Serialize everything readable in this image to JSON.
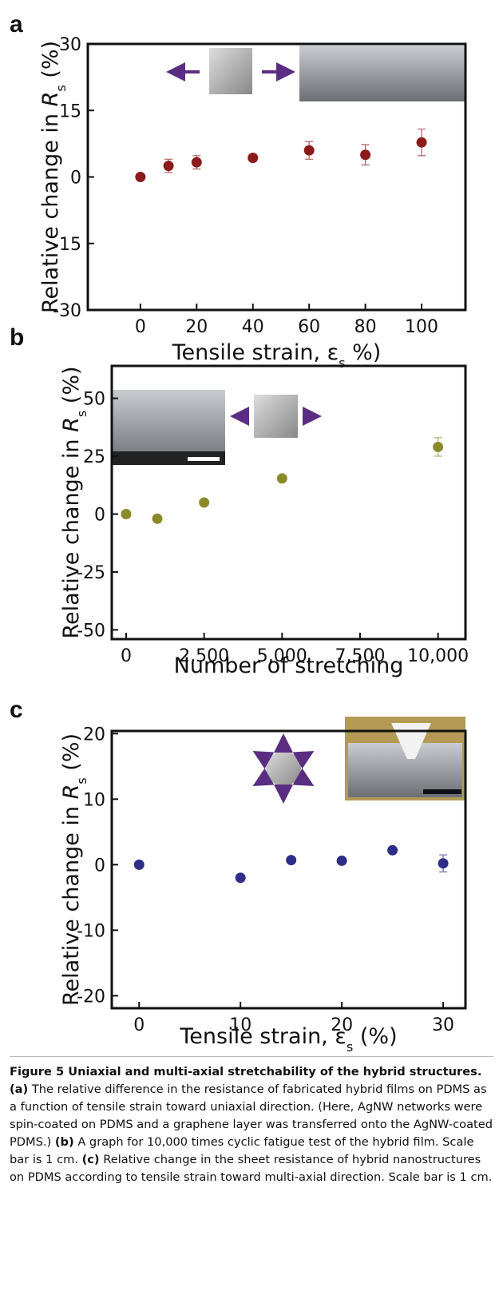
{
  "chart_data": [
    {
      "type": "scatter",
      "panel_label": "a",
      "ylabel": [
        "Relative change in ",
        "R",
        "s",
        " (%)"
      ],
      "xlabel": [
        "Tensile strain, ε",
        "s",
        " %)"
      ],
      "x": [
        0,
        10,
        20,
        40,
        60,
        80,
        100
      ],
      "values": [
        0,
        2.5,
        3.3,
        4.3,
        6,
        5,
        7.8
      ],
      "errors": [
        null,
        1.5,
        1.5,
        0.7,
        2,
        2.3,
        3
      ],
      "color": "#8b1a1a",
      "xlim": [
        -18.7,
        115.6
      ],
      "xticks": [
        0,
        20,
        40,
        60,
        80,
        100
      ],
      "ylim": [
        -30,
        30
      ],
      "yticks": [
        -30,
        -15,
        0,
        15,
        30
      ]
    },
    {
      "type": "scatter",
      "panel_label": "b",
      "ylabel": [
        "Relative change in ",
        "R",
        "s",
        " (%)"
      ],
      "xlabel": [
        "Number of stretching"
      ],
      "x": [
        0,
        1000,
        2500,
        5000,
        10000
      ],
      "values": [
        0,
        -2,
        5,
        15.4,
        29
      ],
      "errors": [
        null,
        null,
        null,
        null,
        4
      ],
      "color": "#8a8a2a",
      "xlim": [
        -460,
        10880
      ],
      "xticks": [
        0,
        {
          "value": 2500,
          "label": "2,500"
        },
        {
          "value": 5000,
          "label": "5,000"
        },
        {
          "value": 7500,
          "label": "7,500"
        },
        {
          "value": 10000,
          "label": "10,000"
        }
      ],
      "ylim": [
        -54,
        64
      ],
      "yticks": [
        -50,
        -25,
        0,
        25,
        50
      ]
    },
    {
      "type": "scatter",
      "panel_label": "c",
      "ylabel": [
        "Relative change in ",
        "R",
        "s",
        " (%)"
      ],
      "xlabel": [
        "Tensile strain, ε",
        "s",
        " (%)"
      ],
      "x": [
        0,
        10,
        15,
        20,
        25,
        30
      ],
      "values": [
        0,
        -2,
        0.7,
        0.6,
        2.2,
        0.2
      ],
      "errors": [
        null,
        null,
        null,
        null,
        null,
        1.3
      ],
      "color": "#2e2e8a",
      "xlim": [
        -2.7,
        32.2
      ],
      "xticks": [
        0,
        10,
        20,
        30
      ],
      "ylim": [
        -21.9,
        20.4
      ],
      "yticks": [
        -20,
        -10,
        0,
        10,
        20
      ]
    }
  ],
  "caption": {
    "title": "Figure 5 Uniaxial and multi-axial stretchability of the hybrid structures.",
    "parts": [
      {
        "label": "(a)",
        "text": "The relative difference in the resistance of fabricated hybrid films on PDMS as a function of tensile strain toward uniaxial direction. (Here, AgNW networks were spin-coated on PDMS and a graphene layer was transferred onto the AgNW-coated PDMS.)"
      },
      {
        "label": "(b)",
        "text": "A graph for 10,000 times cyclic fatigue test of the hybrid film. Scale bar is 1 cm."
      },
      {
        "label": "(c)",
        "text": "Relative change in the sheet resistance of hybrid nanostructures on PDMS according to tensile strain toward multi-axial direction. Scale bar is 1 cm."
      }
    ]
  }
}
